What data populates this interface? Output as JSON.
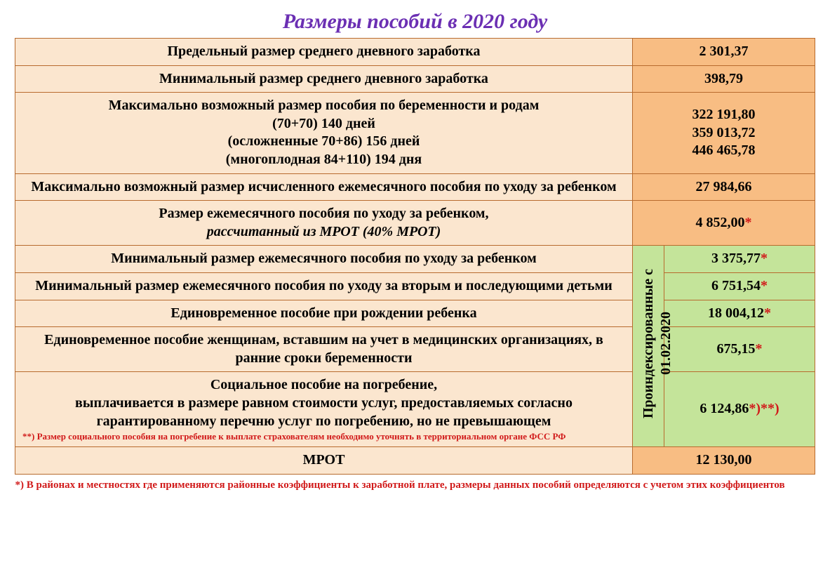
{
  "title": "Размеры пособий в 2020 году",
  "colors": {
    "title_color": "#6b2fb3",
    "border_color": "#b86b2e",
    "desc_bg": "#fbe6cf",
    "value_orange_bg": "#f8bd83",
    "value_green_bg": "#c4e49a",
    "asterisk_color": "#d11a1a",
    "footnote_color": "#d11a1a"
  },
  "rows_top": [
    {
      "desc": "Предельный размер  среднего дневного заработка",
      "value": "2 301,37"
    },
    {
      "desc": "Минимальный размер среднего дневного заработка",
      "value": "398,79"
    }
  ],
  "maternity": {
    "heading": "Максимально возможный размер пособия по беременности и родам",
    "line1": "(70+70)  140 дней",
    "line2": "(осложненные 70+86) 156 дней",
    "line3": "(многоплодная 84+110) 194 дня",
    "values": "322 191,80\n359 013,72\n446 465,78"
  },
  "max_monthly": {
    "desc": "Максимально возможный размер исчисленного ежемесячного пособия по уходу за ребенком",
    "value": "27 984,66"
  },
  "mrot_monthly": {
    "line1": "Размер ежемесячного пособия по уходу за ребенком,",
    "line2": "рассчитанный из МРОТ (40% МРОТ)",
    "value": "4 852,00",
    "suffix": "*"
  },
  "indexed_label": {
    "line1": "Проиндексированные с",
    "line2": "01.02.2020"
  },
  "indexed_rows": [
    {
      "desc": "Минимальный размер ежемесячного пособия по уходу за ребенком",
      "value": "3 375,77",
      "suffix": "*"
    },
    {
      "desc": "Минимальный размер ежемесячного пособия по уходу за вторым и последующими детьми",
      "value": "6 751,54",
      "suffix": "*"
    },
    {
      "desc": "Единовременное пособие при рождении ребенка",
      "value": "18 004,12",
      "suffix": "*"
    },
    {
      "desc": "Единовременное пособие женщинам, вставшим на учет в медицинских организациях, в ранние сроки беременности",
      "value": "675,15",
      "suffix": "*"
    }
  ],
  "burial": {
    "title": "Социальное пособие на погребение,",
    "body": "выплачивается в размере равном стоимости услуг, предоставляемых согласно гарантированному перечню услуг по погребению, но не превышающем",
    "note_prefix": "**)",
    "note": " Размер социального пособия на погребение к выплате страхователям необходимо уточнять в территориальном органе ФСС РФ",
    "value": "6 124,86",
    "suffix": "*)**)"
  },
  "mrot_row": {
    "desc": "МРОТ",
    "value": "12 130,00"
  },
  "footnote": {
    "prefix": "*)",
    "text": " В районах и местностях где применяются районные коэффициенты к заработной плате, размеры данных пособий определяются с учетом этих коэффициентов"
  }
}
